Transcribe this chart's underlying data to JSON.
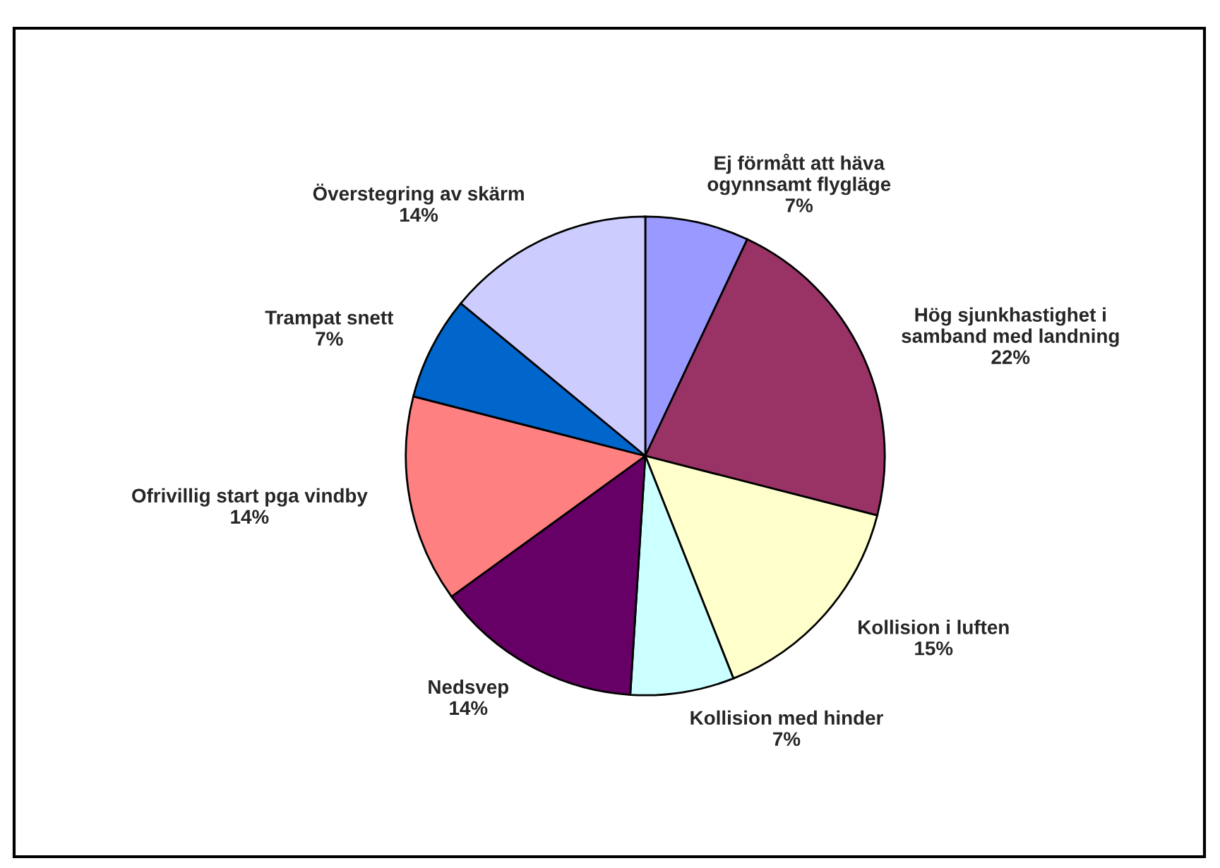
{
  "chart_data": {
    "type": "pie",
    "categories": [
      "Ej förmått att häva\nogynnsamt flygläge",
      "Hög sjunkhastighet i\nsamband med landning",
      "Kollision i luften",
      "Kollision med hinder",
      "Nedsvep",
      "Ofrivillig start pga vindby",
      "Trampat snett",
      "Överstegring av skärm"
    ],
    "values": [
      7,
      22,
      15,
      7,
      14,
      14,
      7,
      14
    ],
    "colors": [
      "#9999ff",
      "#993366",
      "#ffffcc",
      "#ccffff",
      "#660066",
      "#ff8080",
      "#0066cc",
      "#ccccff"
    ],
    "value_labels": [
      "7%",
      "22%",
      "15%",
      "7%",
      "14%",
      "14%",
      "7%",
      "14%"
    ]
  }
}
